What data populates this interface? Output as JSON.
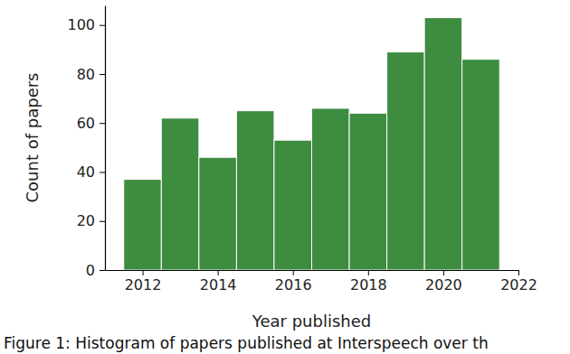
{
  "chart_data": {
    "type": "histogram",
    "x_label": "Year published",
    "y_label": "Count of papers",
    "caption": "Figure 1: Histogram of papers published at Interspeech over th",
    "bins": [
      2011.5,
      2012.5,
      2013.5,
      2014.5,
      2015.5,
      2016.5,
      2017.5,
      2018.5,
      2019.5,
      2020.5,
      2021.5
    ],
    "values": [
      37,
      62,
      46,
      65,
      53,
      66,
      64,
      89,
      103,
      86
    ],
    "color": "#3d8c40",
    "xlim": [
      2011,
      2022
    ],
    "xticks": [
      2012,
      2014,
      2016,
      2018,
      2020,
      2022
    ],
    "ylim": [
      0,
      108
    ],
    "yticks": [
      0,
      20,
      40,
      60,
      80,
      100
    ],
    "grid": false
  }
}
